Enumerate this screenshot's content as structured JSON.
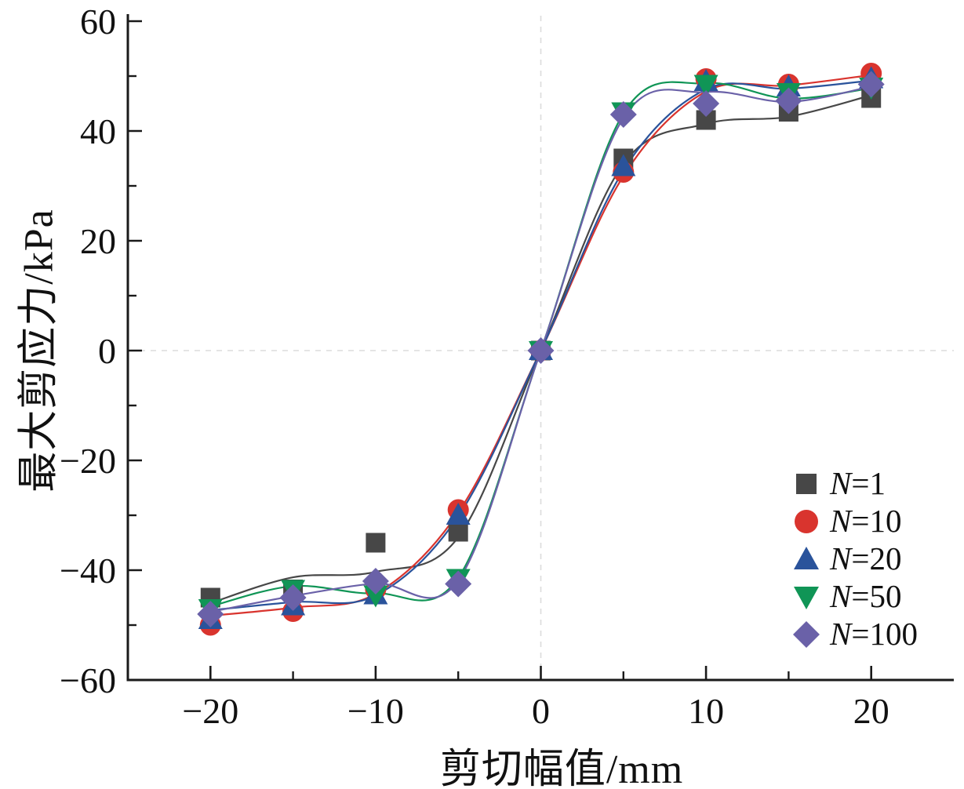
{
  "chart_data": {
    "type": "scatter",
    "title": "",
    "xlabel": "剪切幅值/mm",
    "ylabel": "最大剪应力/kPa",
    "xlim": [
      -25,
      25
    ],
    "ylim": [
      -60,
      60
    ],
    "grid": "zero-lines-only",
    "zero_lines": {
      "color": "#dcdcdc",
      "style": "dashed"
    },
    "axis_color": "#1a1a1a",
    "x": [
      -20,
      -15,
      -10,
      -5,
      0,
      5,
      10,
      15,
      20
    ],
    "series": [
      {
        "label": "N=1",
        "marker": "square",
        "color": "#474747",
        "values": [
          -45,
          -43.5,
          -35,
          -33,
          0,
          35,
          42,
          43.5,
          46
        ],
        "curve": [
          [
            -20,
            -46
          ],
          [
            -15,
            -41.3
          ],
          [
            -10,
            -40.3
          ],
          [
            -5,
            -34
          ],
          [
            0,
            0
          ],
          [
            5,
            34
          ],
          [
            10,
            41.3
          ],
          [
            15,
            42.6
          ],
          [
            20,
            46.5
          ]
        ]
      },
      {
        "label": "N=10",
        "marker": "circle",
        "color": "#d9342e",
        "values": [
          -50,
          -47.5,
          -43.5,
          -29,
          0,
          32.5,
          49.5,
          48.5,
          50.5
        ],
        "curve": [
          [
            -20,
            -48.3
          ],
          [
            -15,
            -46.8
          ],
          [
            -10,
            -44.3
          ],
          [
            -5,
            -29.5
          ],
          [
            0,
            0
          ],
          [
            5,
            31.8
          ],
          [
            10,
            47.2
          ],
          [
            15,
            48.3
          ],
          [
            20,
            50.2
          ]
        ]
      },
      {
        "label": "N=20",
        "marker": "triangle-up",
        "color": "#2a539b",
        "values": [
          -49,
          -46.5,
          -44.5,
          -30,
          0,
          33.5,
          49,
          48,
          49.5
        ],
        "curve": [
          [
            -20,
            -47.3
          ],
          [
            -15,
            -45.8
          ],
          [
            -10,
            -44.6
          ],
          [
            -5,
            -30.2
          ],
          [
            0,
            0
          ],
          [
            5,
            32.8
          ],
          [
            10,
            47.6
          ],
          [
            15,
            47.7
          ],
          [
            20,
            49.2
          ]
        ]
      },
      {
        "label": "N=50",
        "marker": "triangle-down",
        "color": "#109556",
        "values": [
          -47,
          -43.5,
          -44.5,
          -41.5,
          0,
          43.5,
          48.5,
          47,
          48
        ],
        "curve": [
          [
            -20,
            -46.6
          ],
          [
            -15,
            -42.9
          ],
          [
            -10,
            -44.2
          ],
          [
            -5,
            -41.4
          ],
          [
            0,
            0
          ],
          [
            5,
            43.2
          ],
          [
            10,
            48.7
          ],
          [
            15,
            45.9
          ],
          [
            20,
            47.8
          ]
        ]
      },
      {
        "label": "N=100",
        "marker": "diamond",
        "color": "#6a61a8",
        "values": [
          -48,
          -45,
          -42,
          -42.5,
          0,
          43,
          45,
          45.5,
          48.5
        ],
        "curve": [
          [
            -20,
            -47.6
          ],
          [
            -15,
            -44.7
          ],
          [
            -10,
            -42.4
          ],
          [
            -5,
            -41.9
          ],
          [
            0,
            0
          ],
          [
            5,
            42.4
          ],
          [
            10,
            47.1
          ],
          [
            15,
            45.3
          ],
          [
            20,
            48.1
          ]
        ]
      }
    ],
    "x_ticks": {
      "major": [
        -20,
        -10,
        0,
        10,
        20
      ],
      "labels": [
        "−20",
        "−10",
        "0",
        "10",
        "20"
      ],
      "minor": [
        -15,
        -5,
        5,
        15
      ]
    },
    "y_ticks": {
      "major": [
        -60,
        -40,
        -20,
        0,
        20,
        40,
        60
      ],
      "labels": [
        "−60",
        "−40",
        "−20",
        "0",
        "20",
        "40",
        "60"
      ],
      "minor": [
        -50,
        -30,
        -10,
        10,
        30,
        50
      ]
    },
    "legend": {
      "position": "lower-right",
      "items": [
        "N=1",
        "N=10",
        "N=20",
        "N=50",
        "N=100"
      ]
    }
  }
}
